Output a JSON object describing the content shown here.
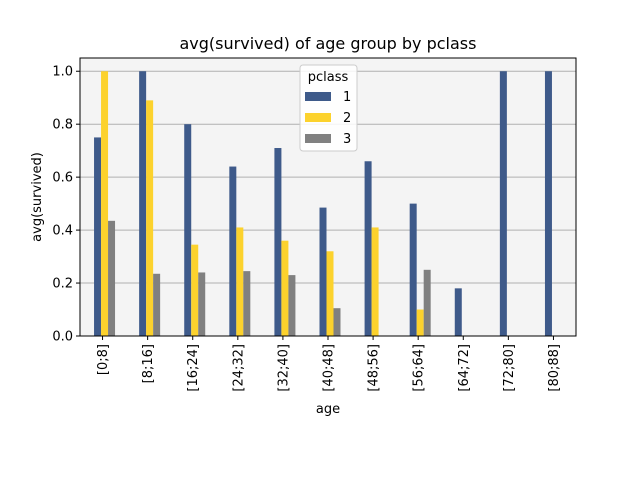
{
  "chart_data": {
    "type": "bar",
    "title": "avg(survived) of age group by pclass",
    "xlabel": "age",
    "ylabel": "avg(survived)",
    "ylim": [
      0,
      1.05
    ],
    "yticks": [
      0.0,
      0.2,
      0.4,
      0.6,
      0.8,
      1.0
    ],
    "ytick_labels": [
      "0.0",
      "0.2",
      "0.4",
      "0.6",
      "0.8",
      "1.0"
    ],
    "grid": "horizontal",
    "legend": {
      "title": "pclass",
      "placement": "top-center"
    },
    "categories": [
      "[0;8]",
      "[8;16]",
      "[16;24]",
      "[24;32]",
      "[32;40]",
      "[40;48]",
      "[48;56]",
      "[56;64]",
      "[64;72]",
      "[72;80]",
      "[80;88]"
    ],
    "series": [
      {
        "name": "1",
        "color": "#3e5a8a",
        "values": [
          0.75,
          1.0,
          0.8,
          0.64,
          0.71,
          0.485,
          0.66,
          0.5,
          0.18,
          1.0,
          1.0
        ]
      },
      {
        "name": "2",
        "color": "#fcd22d",
        "values": [
          1.0,
          0.89,
          0.345,
          0.41,
          0.36,
          0.32,
          0.41,
          0.1,
          null,
          null,
          null
        ]
      },
      {
        "name": "3",
        "color": "#808080",
        "values": [
          0.435,
          0.235,
          0.24,
          0.245,
          0.23,
          0.105,
          null,
          0.25,
          null,
          null,
          null
        ]
      }
    ]
  }
}
